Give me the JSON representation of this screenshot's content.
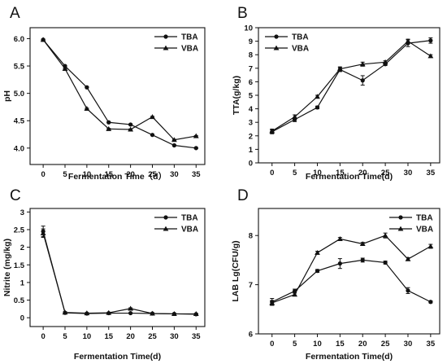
{
  "chart_data": [
    {
      "panel": "A",
      "type": "line",
      "x": [
        0,
        5,
        10,
        15,
        20,
        25,
        30,
        35
      ],
      "xlim": [
        -3,
        37
      ],
      "xticks": [
        0,
        5,
        10,
        15,
        20,
        25,
        30,
        35
      ],
      "ylim": [
        3.7,
        6.2
      ],
      "yticks": [
        4.0,
        4.5,
        5.0,
        5.5,
        6.0
      ],
      "ytick_labels": [
        "4.0",
        "4.5",
        "5.0",
        "5.5",
        "6.0"
      ],
      "xlabel": "Fermentation Time（d）",
      "ylabel": "pH",
      "legend": "top-right",
      "series": [
        {
          "name": "TBA",
          "marker": "circle",
          "values": [
            5.98,
            5.5,
            5.11,
            4.47,
            4.43,
            4.24,
            4.05,
            4.0
          ],
          "errors": [
            0.01,
            0.01,
            0.01,
            0.01,
            0.01,
            0.01,
            0.01,
            0.01
          ]
        },
        {
          "name": "VBA",
          "marker": "triangle",
          "values": [
            5.98,
            5.45,
            4.72,
            4.35,
            4.34,
            4.57,
            4.15,
            4.22
          ],
          "errors": [
            0.01,
            0.01,
            0.01,
            0.01,
            0.01,
            0.01,
            0.01,
            0.01
          ]
        }
      ]
    },
    {
      "panel": "B",
      "type": "line",
      "x": [
        0,
        5,
        10,
        15,
        20,
        25,
        30,
        35
      ],
      "xlim": [
        -3,
        37
      ],
      "xticks": [
        0,
        5,
        10,
        15,
        20,
        25,
        30,
        35
      ],
      "ylim": [
        0,
        10
      ],
      "yticks": [
        0,
        1,
        2,
        3,
        4,
        5,
        6,
        7,
        8,
        9,
        10
      ],
      "ytick_labels": [
        "0",
        "1",
        "2",
        "3",
        "4",
        "5",
        "6",
        "7",
        "8",
        "9",
        "10"
      ],
      "xlabel": "Fermentation Time(d)",
      "ylabel": "TTA(g/kg)",
      "legend": "top-left",
      "series": [
        {
          "name": "TBA",
          "marker": "circle",
          "values": [
            2.3,
            3.2,
            4.1,
            6.9,
            6.1,
            7.3,
            8.85,
            9.05
          ],
          "errors": [
            0.15,
            0.15,
            0.1,
            0.15,
            0.35,
            0.1,
            0.25,
            0.2
          ]
        },
        {
          "name": "VBA",
          "marker": "triangle",
          "values": [
            2.35,
            3.4,
            4.9,
            6.95,
            7.3,
            7.45,
            9.0,
            7.9
          ],
          "errors": [
            0.15,
            0.15,
            0.1,
            0.15,
            0.15,
            0.1,
            0.15,
            0.1
          ]
        }
      ]
    },
    {
      "panel": "C",
      "type": "line",
      "x": [
        0,
        5,
        10,
        15,
        20,
        25,
        30,
        35
      ],
      "xlim": [
        -3,
        37
      ],
      "xticks": [
        0,
        5,
        10,
        15,
        20,
        25,
        30,
        35
      ],
      "ylim": [
        -0.25,
        3.1
      ],
      "yticks": [
        0,
        0.5,
        1.0,
        1.5,
        2.0,
        2.5,
        3.0
      ],
      "ytick_labels": [
        "0",
        "0.5",
        "1",
        "1.5",
        "2",
        "2.5",
        "3"
      ],
      "xlabel": "Fermentation Time(d)",
      "ylabel": "Nitrite (mg/kg)",
      "legend": "top-right",
      "series": [
        {
          "name": "TBA",
          "marker": "circle",
          "values": [
            2.45,
            0.14,
            0.12,
            0.13,
            0.13,
            0.12,
            0.11,
            0.1
          ],
          "errors": [
            0.15,
            0.02,
            0.01,
            0.01,
            0.01,
            0.01,
            0.01,
            0.01
          ]
        },
        {
          "name": "VBA",
          "marker": "triangle",
          "values": [
            2.4,
            0.15,
            0.13,
            0.14,
            0.26,
            0.12,
            0.11,
            0.11
          ],
          "errors": [
            0.12,
            0.02,
            0.01,
            0.01,
            0.02,
            0.01,
            0.01,
            0.01
          ]
        }
      ]
    },
    {
      "panel": "D",
      "type": "line",
      "x": [
        0,
        5,
        10,
        15,
        20,
        25,
        30,
        35
      ],
      "xlim": [
        -3,
        37
      ],
      "xticks": [
        0,
        5,
        10,
        15,
        20,
        25,
        30,
        35
      ],
      "ylim": [
        6.0,
        8.55
      ],
      "yticks": [
        6,
        7,
        8
      ],
      "ytick_labels": [
        "6",
        "7",
        "8"
      ],
      "xlabel": "Fermentation Time(d)",
      "ylabel": "LAB Lg(CFU/g)",
      "legend": "top-right",
      "series": [
        {
          "name": "TBA",
          "marker": "circle",
          "values": [
            6.65,
            6.87,
            7.28,
            7.43,
            7.5,
            7.45,
            6.88,
            6.65
          ],
          "errors": [
            0.07,
            0.04,
            0.03,
            0.1,
            0.04,
            0.03,
            0.06,
            0.02
          ]
        },
        {
          "name": "VBA",
          "marker": "triangle",
          "values": [
            6.63,
            6.8,
            7.65,
            7.93,
            7.83,
            8.0,
            7.52,
            7.78
          ],
          "errors": [
            0.05,
            0.03,
            0.03,
            0.03,
            0.03,
            0.05,
            0.03,
            0.04
          ]
        }
      ]
    }
  ]
}
